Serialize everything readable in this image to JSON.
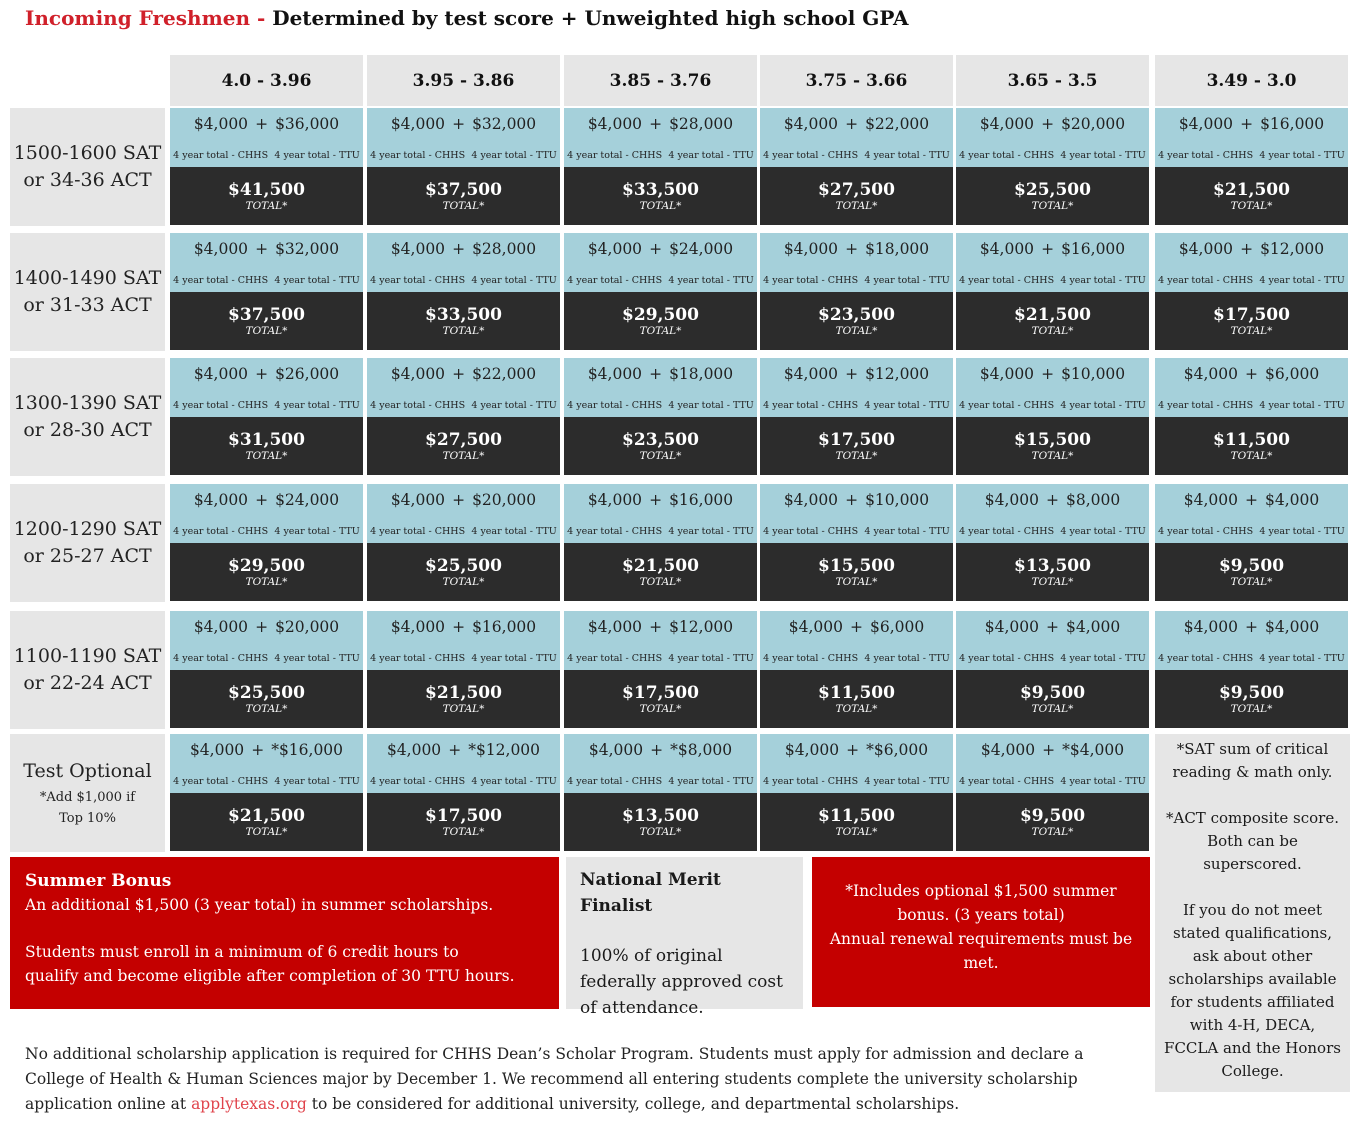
{
  "title": {
    "prefix": "Incoming Freshmen - ",
    "rest": "Determined by test score + Unweighted high school GPA"
  },
  "gpa_headers": [
    "4.0 - 3.96",
    "3.95 - 3.86",
    "3.85 - 3.76",
    "3.75 - 3.66",
    "3.65 - 3.5",
    "3.49 - 3.0"
  ],
  "cell_labels": {
    "chhs": "4 year total - CHHS",
    "ttu": "4 year total - TTU",
    "plus": "+",
    "total_caption": "TOTAL*"
  },
  "rows": [
    {
      "score_line1": "1500-1600 SAT",
      "score_line2": "or 34-36 ACT",
      "note": "",
      "cells": [
        {
          "chhs": "$4,000",
          "ttu": "$36,000",
          "total": "$41,500"
        },
        {
          "chhs": "$4,000",
          "ttu": "$32,000",
          "total": "$37,500"
        },
        {
          "chhs": "$4,000",
          "ttu": "$28,000",
          "total": "$33,500"
        },
        {
          "chhs": "$4,000",
          "ttu": "$22,000",
          "total": "$27,500"
        },
        {
          "chhs": "$4,000",
          "ttu": "$20,000",
          "total": "$25,500"
        },
        {
          "chhs": "$4,000",
          "ttu": "$16,000",
          "total": "$21,500"
        }
      ]
    },
    {
      "score_line1": "1400-1490 SAT",
      "score_line2": "or 31-33 ACT",
      "note": "",
      "cells": [
        {
          "chhs": "$4,000",
          "ttu": "$32,000",
          "total": "$37,500"
        },
        {
          "chhs": "$4,000",
          "ttu": "$28,000",
          "total": "$33,500"
        },
        {
          "chhs": "$4,000",
          "ttu": "$24,000",
          "total": "$29,500"
        },
        {
          "chhs": "$4,000",
          "ttu": "$18,000",
          "total": "$23,500"
        },
        {
          "chhs": "$4,000",
          "ttu": "$16,000",
          "total": "$21,500"
        },
        {
          "chhs": "$4,000",
          "ttu": "$12,000",
          "total": "$17,500"
        }
      ]
    },
    {
      "score_line1": "1300-1390 SAT",
      "score_line2": "or 28-30 ACT",
      "note": "",
      "cells": [
        {
          "chhs": "$4,000",
          "ttu": "$26,000",
          "total": "$31,500"
        },
        {
          "chhs": "$4,000",
          "ttu": "$22,000",
          "total": "$27,500"
        },
        {
          "chhs": "$4,000",
          "ttu": "$18,000",
          "total": "$23,500"
        },
        {
          "chhs": "$4,000",
          "ttu": "$12,000",
          "total": "$17,500"
        },
        {
          "chhs": "$4,000",
          "ttu": "$10,000",
          "total": "$15,500"
        },
        {
          "chhs": "$4,000",
          "ttu": "$6,000",
          "total": "$11,500"
        }
      ]
    },
    {
      "score_line1": "1200-1290 SAT",
      "score_line2": "or 25-27 ACT",
      "note": "",
      "cells": [
        {
          "chhs": "$4,000",
          "ttu": "$24,000",
          "total": "$29,500"
        },
        {
          "chhs": "$4,000",
          "ttu": "$20,000",
          "total": "$25,500"
        },
        {
          "chhs": "$4,000",
          "ttu": "$16,000",
          "total": "$21,500"
        },
        {
          "chhs": "$4,000",
          "ttu": "$10,000",
          "total": "$15,500"
        },
        {
          "chhs": "$4,000",
          "ttu": "$8,000",
          "total": "$13,500"
        },
        {
          "chhs": "$4,000",
          "ttu": "$4,000",
          "total": "$9,500"
        }
      ]
    },
    {
      "score_line1": "1100-1190 SAT",
      "score_line2": "or 22-24 ACT",
      "note": "",
      "cells": [
        {
          "chhs": "$4,000",
          "ttu": "$20,000",
          "total": "$25,500"
        },
        {
          "chhs": "$4,000",
          "ttu": "$16,000",
          "total": "$21,500"
        },
        {
          "chhs": "$4,000",
          "ttu": "$12,000",
          "total": "$17,500"
        },
        {
          "chhs": "$4,000",
          "ttu": "$6,000",
          "total": "$11,500"
        },
        {
          "chhs": "$4,000",
          "ttu": "$4,000",
          "total": "$9,500"
        },
        {
          "chhs": "$4,000",
          "ttu": "$4,000",
          "total": "$9,500"
        }
      ]
    },
    {
      "score_line1": "Test Optional",
      "score_line2": "",
      "note": "*Add $1,000 if Top 10%",
      "cells": [
        {
          "chhs": "$4,000",
          "ttu": "*$16,000",
          "total": "$21,500"
        },
        {
          "chhs": "$4,000",
          "ttu": "*$12,000",
          "total": "$17,500"
        },
        {
          "chhs": "$4,000",
          "ttu": "*$8,000",
          "total": "$13,500"
        },
        {
          "chhs": "$4,000",
          "ttu": "*$6,000",
          "total": "$11,500"
        },
        {
          "chhs": "$4,000",
          "ttu": "*$4,000",
          "total": "$9,500"
        }
      ]
    }
  ],
  "side_note": {
    "p1": "*SAT sum of critical reading & math only.",
    "p2": "*ACT composite score. Both can be superscored.",
    "p3": "If you do not meet stated qualifications, ask about other scholarships available for students affiliated with 4-H, DECA, FCCLA and the Honors College."
  },
  "summer_bonus": {
    "heading": "Summer Bonus",
    "line1": "An additional $1,500 (3 year total) in summer scholarships.",
    "line2": "Students must enroll in a minimum of 6 credit hours to qualify and become eligible after completion of 30 TTU hours."
  },
  "national_merit": {
    "heading": "National Merit Finalist",
    "body": "100% of original federally approved cost of attendance."
  },
  "includes_note": {
    "line1": "*Includes optional $1,500 summer bonus. (3 years total)",
    "line2": "Annual renewal requirements must be met."
  },
  "footer": {
    "text_before_link": "No additional scholarship application is required for CHHS Dean’s Scholar Program. Students must apply for admission and declare a College of Health & Human Sciences major by December 1. We recommend all entering students complete the university scholarship application online at ",
    "link_text": "applytexas.org",
    "text_after_link": " to be considered for additional university, college, and departmental scholarships."
  },
  "colors": {
    "title_red": "#d0202a",
    "header_grey": "#e6e6e6",
    "light_blue": "#a5d0da",
    "dark_total": "#2c2c2c",
    "box_red": "#c40000",
    "link_red": "#e0434b"
  }
}
